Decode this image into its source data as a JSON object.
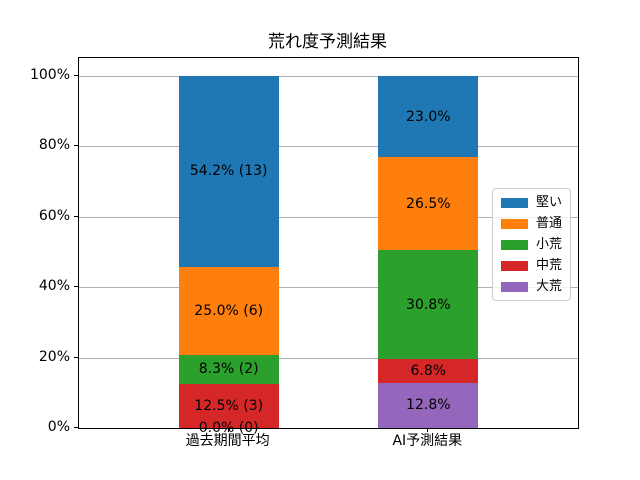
{
  "chart_data": {
    "type": "bar",
    "variant": "stacked",
    "title": "荒れ度予測結果",
    "categories": [
      "過去期間平均",
      "AI予測結果"
    ],
    "series": [
      {
        "name": "堅い",
        "color": "#1f77b4",
        "values": [
          54.2,
          23.0
        ],
        "labels": [
          "54.2% (13)",
          "23.0%"
        ]
      },
      {
        "name": "普通",
        "color": "#ff7f0e",
        "values": [
          25.0,
          26.5
        ],
        "labels": [
          "25.0% (6)",
          "26.5%"
        ]
      },
      {
        "name": "小荒",
        "color": "#2ca02c",
        "values": [
          8.3,
          30.8
        ],
        "labels": [
          "8.3% (2)",
          "30.8%"
        ]
      },
      {
        "name": "中荒",
        "color": "#d62728",
        "values": [
          12.5,
          6.8
        ],
        "labels": [
          "12.5% (3)",
          "6.8%"
        ]
      },
      {
        "name": "大荒",
        "color": "#9467bd",
        "values": [
          0.0,
          12.8
        ],
        "labels": [
          "0.0% (0)",
          "12.8%"
        ]
      }
    ],
    "stack_order_bottom_to_top": [
      "大荒",
      "中荒",
      "小荒",
      "普通",
      "堅い"
    ],
    "yticks": {
      "values": [
        0,
        20,
        40,
        60,
        80,
        100
      ],
      "labels": [
        "0%",
        "20%",
        "40%",
        "60%",
        "80%",
        "100%"
      ]
    },
    "ylim": [
      0,
      105
    ],
    "grid": true,
    "grid_color": "#b0b0b0",
    "legend": {
      "position": "center-right-inside",
      "entries": [
        "堅い",
        "普通",
        "小荒",
        "中荒",
        "大荒"
      ]
    }
  }
}
